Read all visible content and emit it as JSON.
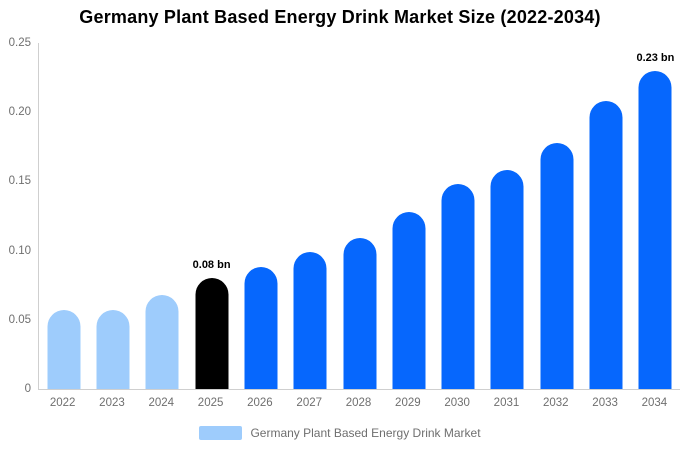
{
  "chart_data": {
    "type": "bar",
    "title": "Germany Plant Based Energy Drink Market Size (2022-2034)",
    "xlabel": "",
    "ylabel": "",
    "ylim": [
      0,
      0.25
    ],
    "grid": false,
    "legend_position": "bottom",
    "yticks": [
      {
        "label": "0.25",
        "value": 0.25
      },
      {
        "label": "0.20",
        "value": 0.2
      },
      {
        "label": "0.15",
        "value": 0.15
      },
      {
        "label": "0.10",
        "value": 0.1
      },
      {
        "label": "0.05",
        "value": 0.05
      },
      {
        "label": "0",
        "value": 0
      }
    ],
    "categories": [
      "2022",
      "2023",
      "2024",
      "2025",
      "2026",
      "2027",
      "2028",
      "2029",
      "2030",
      "2031",
      "2032",
      "2033",
      "2034"
    ],
    "bars": [
      {
        "year": "2022",
        "value": 0.057,
        "color": "light_blue",
        "label": ""
      },
      {
        "year": "2023",
        "value": 0.057,
        "color": "light_blue",
        "label": ""
      },
      {
        "year": "2024",
        "value": 0.068,
        "color": "light_blue",
        "label": ""
      },
      {
        "year": "2025",
        "value": 0.08,
        "color": "black",
        "label": "0.08 bn"
      },
      {
        "year": "2026",
        "value": 0.088,
        "color": "blue",
        "label": ""
      },
      {
        "year": "2027",
        "value": 0.099,
        "color": "blue",
        "label": ""
      },
      {
        "year": "2028",
        "value": 0.109,
        "color": "blue",
        "label": ""
      },
      {
        "year": "2029",
        "value": 0.128,
        "color": "blue",
        "label": ""
      },
      {
        "year": "2030",
        "value": 0.148,
        "color": "blue",
        "label": ""
      },
      {
        "year": "2031",
        "value": 0.158,
        "color": "blue",
        "label": ""
      },
      {
        "year": "2032",
        "value": 0.178,
        "color": "blue",
        "label": ""
      },
      {
        "year": "2033",
        "value": 0.208,
        "color": "blue",
        "label": ""
      },
      {
        "year": "2034",
        "value": 0.23,
        "color": "blue",
        "label": "0.23 bn"
      }
    ],
    "legend": {
      "label": "Germany Plant Based Energy Drink Market",
      "swatch": "light_blue"
    },
    "colors": {
      "light_blue": "#9eccfc",
      "blue": "#0667fd",
      "black": "#000000",
      "axis": "#cfcfcf",
      "tick_text": "#6f6f6f",
      "title_text": "#000000",
      "value_label_text": "#000000"
    }
  }
}
